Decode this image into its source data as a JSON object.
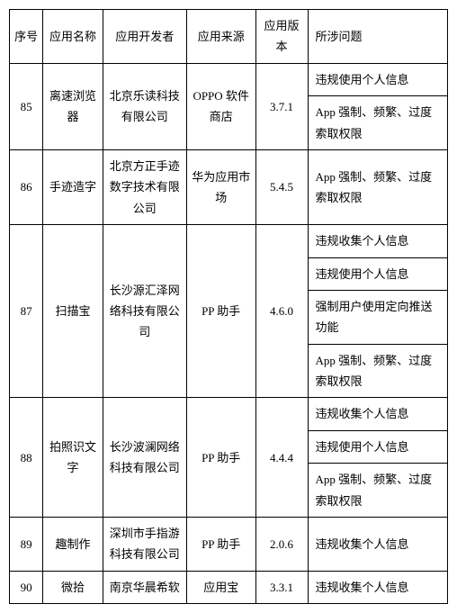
{
  "headers": {
    "seq": "序号",
    "name": "应用名称",
    "dev": "应用开发者",
    "src": "应用来源",
    "ver": "应用版本",
    "issue": "所涉问题"
  },
  "rows": [
    {
      "seq": "85",
      "name": "离速浏览器",
      "dev": "北京乐读科技有限公司",
      "src": "OPPO 软件商店",
      "ver": "3.7.1",
      "issues": [
        "违规使用个人信息",
        "App 强制、频繁、过度索取权限"
      ]
    },
    {
      "seq": "86",
      "name": "手迹造字",
      "dev": "北京方正手迹数字技术有限公司",
      "src": "华为应用市场",
      "ver": "5.4.5",
      "issues": [
        "App 强制、频繁、过度索取权限"
      ]
    },
    {
      "seq": "87",
      "name": "扫描宝",
      "dev": "长沙源汇泽网络科技有限公司",
      "src": "PP 助手",
      "ver": "4.6.0",
      "issues": [
        "违规收集个人信息",
        "违规使用个人信息",
        "强制用户使用定向推送功能",
        "App 强制、频繁、过度索取权限"
      ]
    },
    {
      "seq": "88",
      "name": "拍照识文字",
      "dev": "长沙波澜网络科技有限公司",
      "src": "PP 助手",
      "ver": "4.4.4",
      "issues": [
        "违规收集个人信息",
        "违规使用个人信息",
        "App 强制、频繁、过度索取权限"
      ]
    },
    {
      "seq": "89",
      "name": "趣制作",
      "dev": "深圳市手指游科技有限公司",
      "src": "PP 助手",
      "ver": "2.0.6",
      "issues": [
        "违规收集个人信息"
      ]
    },
    {
      "seq": "90",
      "name": "微拾",
      "dev": "南京华晨希软",
      "src": "应用宝",
      "ver": "3.3.1",
      "issues": [
        "违规收集个人信息"
      ]
    }
  ]
}
